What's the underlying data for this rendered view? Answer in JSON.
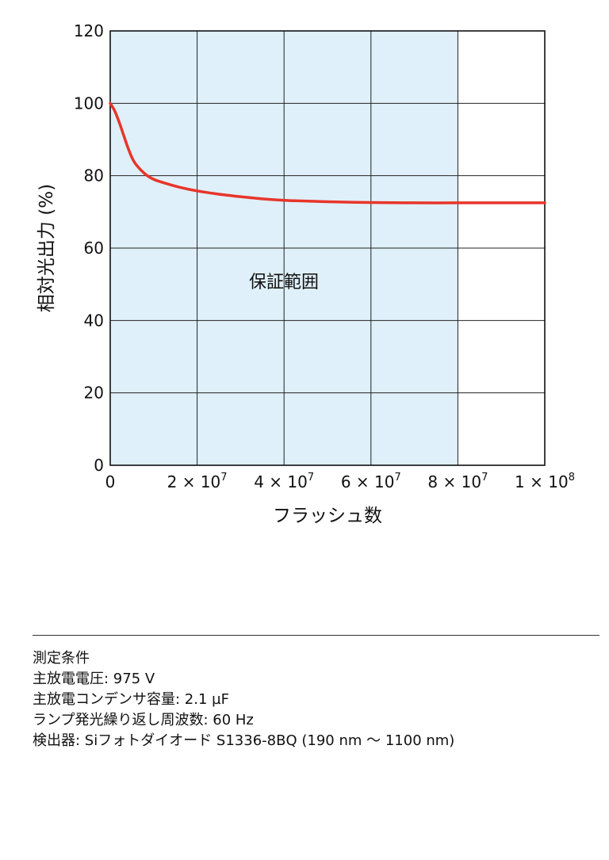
{
  "chart_data": {
    "type": "line",
    "xlabel": "フラッシュ数",
    "ylabel": "相対光出力 (%)",
    "xlim": [
      0,
      100000000
    ],
    "ylim": [
      0,
      120
    ],
    "x_ticks": [
      {
        "value": 0,
        "mant": "0",
        "exp": ""
      },
      {
        "value": 20000000,
        "mant": "2 × 10",
        "exp": "7"
      },
      {
        "value": 40000000,
        "mant": "4 × 10",
        "exp": "7"
      },
      {
        "value": 60000000,
        "mant": "6 × 10",
        "exp": "7"
      },
      {
        "value": 80000000,
        "mant": "8 × 10",
        "exp": "7"
      },
      {
        "value": 100000000,
        "mant": "1 × 10",
        "exp": "8"
      }
    ],
    "y_ticks": [
      0,
      20,
      40,
      60,
      80,
      100,
      120
    ],
    "x_grid": [
      0,
      20000000,
      40000000,
      60000000,
      80000000,
      100000000
    ],
    "grid": true,
    "shaded_region": {
      "label": "保証範囲",
      "x_range": [
        0,
        80000000
      ],
      "color": "#dff0fa"
    },
    "series": [
      {
        "color": "#e8352a",
        "x": [
          0,
          1000000,
          2000000,
          3000000,
          4000000,
          5000000,
          6000000,
          8000000,
          10000000,
          13000000,
          16000000,
          20000000,
          25000000,
          30000000,
          35000000,
          40000000,
          45000000,
          50000000,
          60000000,
          70000000,
          80000000,
          90000000,
          100000000
        ],
        "y": [
          100,
          98,
          95,
          91.5,
          88,
          85,
          83,
          80.5,
          79,
          77.8,
          76.8,
          75.8,
          74.9,
          74.2,
          73.6,
          73.2,
          73.0,
          72.8,
          72.6,
          72.5,
          72.5,
          72.5,
          72.5
        ]
      }
    ]
  },
  "conditions": {
    "heading": "測定条件",
    "lines": [
      "主放電電圧: 975 V",
      "主放電コンデンサ容量: 2.1 µF",
      "ランプ発光繰り返し周波数: 60 Hz",
      "検出器: Siフォトダイオード S1336-8BQ (190 nm ～ 1100 nm)"
    ]
  }
}
